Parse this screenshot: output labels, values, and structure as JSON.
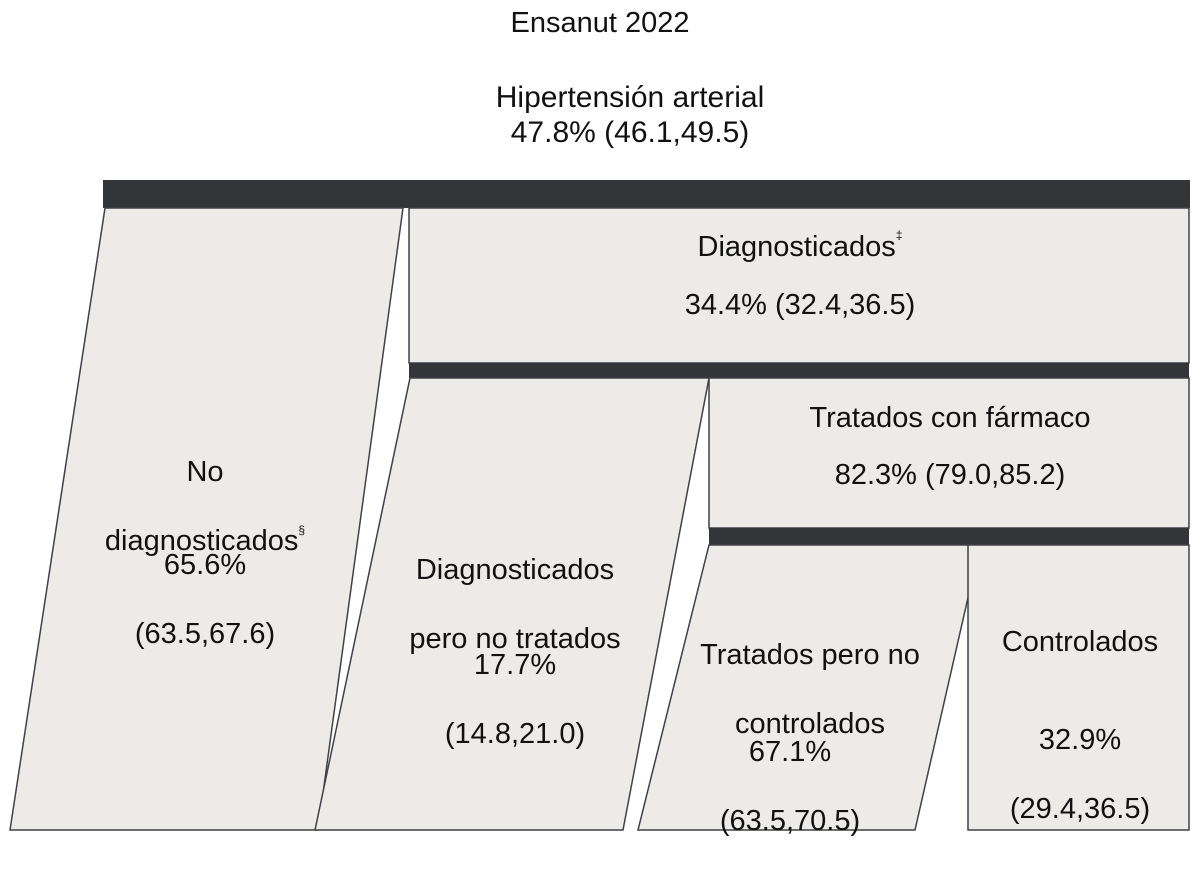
{
  "header": {
    "survey": "Ensanut 2022",
    "condition": "Hipertensión arterial",
    "prevalence": "47.8% (46.1,49.5)"
  },
  "nodes": {
    "no_diagnosticados": {
      "label_line1": "No",
      "label_line2": "diagnosticados",
      "marker": "§",
      "value": "65.6%",
      "ci": "(63.5,67.6)"
    },
    "diagnosticados": {
      "label": "Diagnosticados",
      "marker": "‡",
      "value": "34.4% (32.4,36.5)"
    },
    "no_tratados": {
      "label_line1": "Diagnosticados",
      "label_line2": "pero no tratados",
      "value": "17.7%",
      "ci": "(14.8,21.0)"
    },
    "tratados": {
      "label": "Tratados con fármaco",
      "value": "82.3% (79.0,85.2)"
    },
    "no_controlados": {
      "label_line1": "Tratados pero no",
      "label_line2": "controlados",
      "value": "67.1%",
      "ci": "(63.5,70.5)"
    },
    "controlados": {
      "label": "Controlados",
      "value": "32.9%",
      "ci": "(29.4,36.5)"
    }
  },
  "colors": {
    "box_fill": "#ecebe7",
    "bar_fill": "#333538",
    "stroke": "#3f4147"
  }
}
